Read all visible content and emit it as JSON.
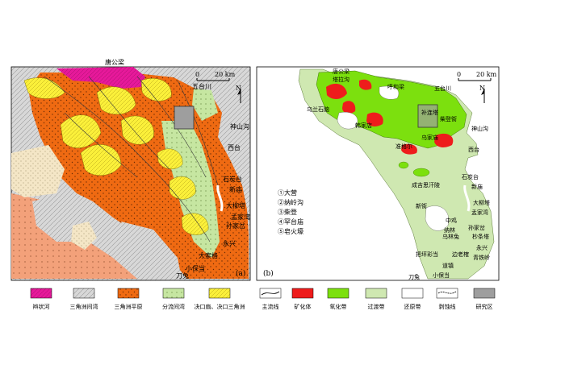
{
  "panel_a": {
    "label": "(a)",
    "scale_label": "20 km",
    "scale_zero": "0",
    "north": "N",
    "places": [
      {
        "id": "tanggongliang",
        "text": "唐公梁"
      },
      {
        "id": "wutaichuan",
        "text": "五台川"
      },
      {
        "id": "shenshangou",
        "text": "神山沟"
      },
      {
        "id": "xitai",
        "text": "西台"
      },
      {
        "id": "shiyantai",
        "text": "石炭台"
      },
      {
        "id": "xinmiao",
        "text": "新庙"
      },
      {
        "id": "dalianta",
        "text": "大柳塔"
      },
      {
        "id": "mengjiawan",
        "text": "孟家湾"
      },
      {
        "id": "sunjiacha",
        "text": "孙家岔"
      },
      {
        "id": "yongxing",
        "text": "永兴"
      },
      {
        "id": "dasuoge",
        "text": "大索格"
      },
      {
        "id": "daotu",
        "text": "刀兔"
      },
      {
        "id": "xiaobaodang",
        "text": "小保当"
      }
    ]
  },
  "panel_b": {
    "label": "(b)",
    "scale_label": "20 km",
    "scale_zero": "0",
    "north": "N",
    "places": [
      {
        "id": "tanggongliang",
        "text": "唐公梁"
      },
      {
        "id": "tanggongliang2",
        "text": "塔拉沟"
      },
      {
        "id": "hongqinghe",
        "text": "呼和梁"
      },
      {
        "id": "wutaichuan",
        "text": "五台川"
      },
      {
        "id": "shenshangou",
        "text": "神山沟"
      },
      {
        "id": "xitai",
        "text": "西台"
      },
      {
        "id": "bulianta",
        "text": "补连塔"
      },
      {
        "id": "wulanshinao",
        "text": "乌兰石脑"
      },
      {
        "id": "chaidengjie",
        "text": "柴登街"
      },
      {
        "id": "hanjiadian",
        "text": "韩家店"
      },
      {
        "id": "wujiamiao",
        "text": "乌家庙"
      },
      {
        "id": "zhunnuo",
        "text": "准格尔"
      },
      {
        "id": "chengjisihanling",
        "text": "成吉思汗陵"
      },
      {
        "id": "shiyantai",
        "text": "石炭台"
      },
      {
        "id": "xinmiao",
        "text": "新庙"
      },
      {
        "id": "xinjie",
        "text": "新街"
      },
      {
        "id": "dalianta",
        "text": "大柳塔"
      },
      {
        "id": "mengjiawan",
        "text": "孟家湾"
      },
      {
        "id": "sunjiacha",
        "text": "孙家岔"
      },
      {
        "id": "zhongji",
        "text": "中鸡"
      },
      {
        "id": "nachu",
        "text": "纳林"
      },
      {
        "id": "wulimiao",
        "text": "乌林兔"
      },
      {
        "id": "yongxing",
        "text": "永兴"
      },
      {
        "id": "shaluota",
        "text": "杪条塔"
      },
      {
        "id": "bianshe",
        "text": "边老榷"
      },
      {
        "id": "qingtielin",
        "text": "青铁岭"
      },
      {
        "id": "bamanshe",
        "text": "把坪彩当"
      },
      {
        "id": "dazhen",
        "text": "道镇"
      },
      {
        "id": "daotu",
        "text": "刀兔"
      },
      {
        "id": "xiaobaodang",
        "text": "小保当"
      }
    ],
    "deposits": [
      "①大营",
      "②纳岭沟",
      "③柴登",
      "④罕台庙",
      "⑤皂火壕"
    ]
  },
  "legend": [
    {
      "id": "braided-river",
      "label": "辫状河",
      "color": "#e6199a",
      "kind": "fill"
    },
    {
      "id": "interdelta-bay",
      "label": "三角洲间湾",
      "color": "#d4d4d4",
      "kind": "hatch"
    },
    {
      "id": "delta-plain",
      "label": "三角洲平原",
      "color": "#ef6a12",
      "kind": "fill"
    },
    {
      "id": "distributary-bay",
      "label": "分流间湾",
      "color": "#c6e6a1",
      "kind": "dots"
    },
    {
      "id": "crevasse",
      "label": "决口扇、决口三角洲",
      "color": "#fbf03a",
      "kind": "lines"
    },
    {
      "id": "main-channel",
      "label": "主流线",
      "color": "#ffffff",
      "kind": "line"
    },
    {
      "id": "ore-body",
      "label": "矿化体",
      "color": "#ee1c1c",
      "kind": "fill"
    },
    {
      "id": "oxidation-zone",
      "label": "氧化带",
      "color": "#7ce00e",
      "kind": "fill"
    },
    {
      "id": "transition-zone",
      "label": "过渡带",
      "color": "#cfe8b1",
      "kind": "fill"
    },
    {
      "id": "reduction-zone",
      "label": "还原带",
      "color": "#ffffff",
      "kind": "fill"
    },
    {
      "id": "erosion-line",
      "label": "剥蚀线",
      "color": "#ffffff",
      "kind": "erosion"
    },
    {
      "id": "study-area",
      "label": "研究区",
      "color": "#9e9e9e",
      "kind": "fill"
    }
  ]
}
